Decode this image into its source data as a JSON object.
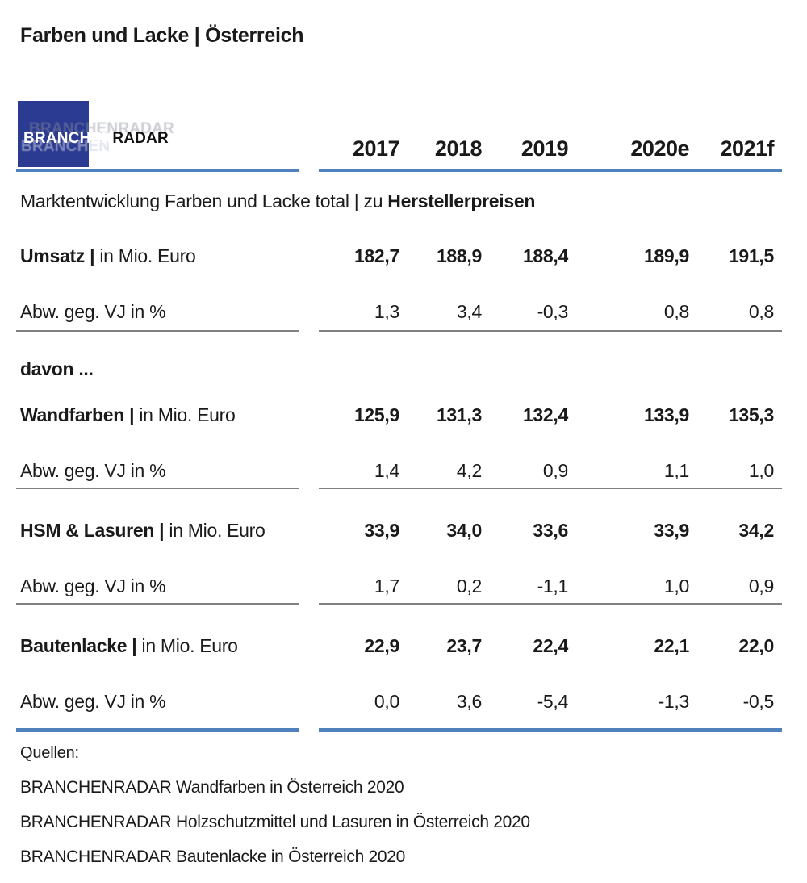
{
  "title": "Farben und Lacke | Österreich",
  "logo": {
    "part1": "BRANCHEN",
    "part2": "RADAR"
  },
  "colors": {
    "accent_blue": "#4f81bd",
    "logo_blue": "#2c3b92",
    "rule_gray": "#808080",
    "text": "#1a1a1a"
  },
  "header": {
    "years": [
      "2017",
      "2018",
      "2019",
      "2020e",
      "2021f"
    ]
  },
  "section": {
    "title_regular": "Marktentwicklung Farben und Lacke total | zu ",
    "title_bold": "Herstellerpreisen"
  },
  "table": {
    "davon_label": "davon ...",
    "abw_label": "Abw. geg. VJ in %",
    "groups": [
      {
        "label_bold": "Umsatz |",
        "label_unit": "in Mio. Euro",
        "values": [
          "182,7",
          "188,9",
          "188,4",
          "189,9",
          "191,5"
        ],
        "abw_values": [
          "1,3",
          "3,4",
          "-0,3",
          "0,8",
          "0,8"
        ]
      },
      {
        "label_bold": "Wandfarben |",
        "label_unit": "in Mio. Euro",
        "values": [
          "125,9",
          "131,3",
          "132,4",
          "133,9",
          "135,3"
        ],
        "abw_values": [
          "1,4",
          "4,2",
          "0,9",
          "1,1",
          "1,0"
        ]
      },
      {
        "label_bold": "HSM & Lasuren |",
        "label_unit": "in Mio. Euro",
        "values": [
          "33,9",
          "34,0",
          "33,6",
          "33,9",
          "34,2"
        ],
        "abw_values": [
          "1,7",
          "0,2",
          "-1,1",
          "1,0",
          "0,9"
        ]
      },
      {
        "label_bold": "Bautenlacke |",
        "label_unit": "in Mio. Euro",
        "values": [
          "22,9",
          "23,7",
          "22,4",
          "22,1",
          "22,0"
        ],
        "abw_values": [
          "0,0",
          "3,6",
          "-5,4",
          "-1,3",
          "-0,5"
        ]
      }
    ]
  },
  "sources": {
    "heading": "Quellen:",
    "items": [
      "BRANCHENRADAR Wandfarben in Österreich 2020",
      "BRANCHENRADAR Holzschutzmittel und Lasuren in Österreich 2020",
      "BRANCHENRADAR Bautenlacke in Österreich 2020"
    ]
  }
}
